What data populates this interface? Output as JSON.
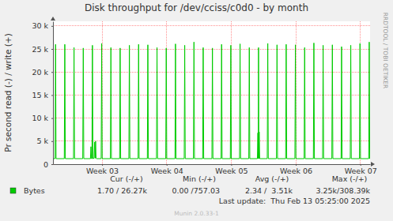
{
  "chart_data": {
    "type": "line",
    "title": "Disk throughput for /dev/cciss/c0d0 - by month",
    "y_label": "Pr second read (-) / write (+)",
    "watermark": "RRDTOOL / TOBI OETIKER",
    "xlim": [
      2.24,
      7.15
    ],
    "xticks": [
      {
        "value": 3,
        "label": "Week 03"
      },
      {
        "value": 4,
        "label": "Week 04"
      },
      {
        "value": 5,
        "label": "Week 05"
      },
      {
        "value": 6,
        "label": "Week 06"
      },
      {
        "value": 7,
        "label": "Week 07"
      }
    ],
    "ylim": [
      0,
      31000
    ],
    "yticks": [
      0,
      {
        "value": 5000,
        "label": "5 k"
      },
      {
        "value": 10000,
        "label": "10 k"
      },
      {
        "value": 15000,
        "label": "15 k"
      },
      {
        "value": 20000,
        "label": "20 k"
      },
      {
        "value": 25000,
        "label": "25 k"
      },
      {
        "value": 30000,
        "label": "30 k"
      }
    ],
    "grid": true,
    "x": [
      2.24,
      2.272,
      2.28,
      2.288,
      2.415,
      2.423,
      2.431,
      2.558,
      2.566,
      2.574,
      2.701,
      2.709,
      2.717,
      2.82,
      2.828,
      2.836,
      2.843,
      2.851,
      2.859,
      2.877,
      2.885,
      2.893,
      2.9,
      2.907,
      2.914,
      2.986,
      2.994,
      3.002,
      3.129,
      3.137,
      3.145,
      3.272,
      3.28,
      3.288,
      3.415,
      3.423,
      3.431,
      3.558,
      3.566,
      3.574,
      3.701,
      3.709,
      3.717,
      3.843,
      3.851,
      3.859,
      3.986,
      3.994,
      4.002,
      4.129,
      4.137,
      4.145,
      4.272,
      4.28,
      4.288,
      4.415,
      4.423,
      4.431,
      4.558,
      4.566,
      4.574,
      4.701,
      4.709,
      4.717,
      4.843,
      4.851,
      4.859,
      4.986,
      4.994,
      5.002,
      5.129,
      5.137,
      5.145,
      5.272,
      5.28,
      5.288,
      5.405,
      5.413,
      5.418,
      5.423,
      5.428,
      5.433,
      5.441,
      5.558,
      5.566,
      5.574,
      5.701,
      5.709,
      5.717,
      5.843,
      5.851,
      5.859,
      5.986,
      5.994,
      6.002,
      6.129,
      6.137,
      6.145,
      6.272,
      6.28,
      6.288,
      6.415,
      6.423,
      6.431,
      6.558,
      6.566,
      6.574,
      6.701,
      6.709,
      6.717,
      6.843,
      6.851,
      6.859,
      6.986,
      6.994,
      7.002,
      7.129,
      7.137,
      7.145,
      7.15
    ],
    "series": [
      {
        "name": "Bytes",
        "color": "#00cc00",
        "values": [
          1200,
          1200,
          26000,
          1200,
          1200,
          26000,
          1200,
          1200,
          25300,
          1200,
          1200,
          25200,
          1200,
          1200,
          3800,
          1200,
          1200,
          25800,
          1200,
          1300,
          4800,
          1300,
          5000,
          1300,
          1200,
          1200,
          26200,
          1200,
          1200,
          25300,
          1200,
          1200,
          25200,
          1200,
          1200,
          25800,
          1200,
          1200,
          26000,
          1200,
          1200,
          25900,
          1200,
          1200,
          25300,
          1200,
          1200,
          25200,
          1200,
          1200,
          26100,
          1200,
          1200,
          25800,
          1200,
          1200,
          26500,
          1200,
          1200,
          25300,
          1200,
          1200,
          25200,
          1200,
          1200,
          26000,
          1200,
          1200,
          25800,
          1200,
          1200,
          26100,
          1200,
          1200,
          25300,
          1200,
          1200,
          6800,
          1200,
          25300,
          1200,
          7000,
          1200,
          1200,
          26200,
          1200,
          1200,
          25900,
          1200,
          1200,
          26000,
          1200,
          1200,
          25900,
          1200,
          1200,
          25300,
          1200,
          1200,
          26300,
          1200,
          1200,
          25800,
          1200,
          1200,
          25900,
          1200,
          1200,
          25500,
          1200,
          1200,
          25800,
          1200,
          1200,
          26200,
          1200,
          1200,
          26500,
          1200,
          1200
        ]
      }
    ],
    "legend_table": {
      "headers": [
        "Cur (-/+)",
        "Min (-/+)",
        "Avg (-/+)",
        "Max (-/+)"
      ],
      "values": [
        "1.70 / 26.27k",
        "0.00 /757.03",
        "2.34 /  3.51k",
        "3.25k/308.39k"
      ]
    },
    "last_update": "Last update:  Thu Feb 13 05:25:00 2025",
    "footer": "Munin 2.0.33-1"
  }
}
